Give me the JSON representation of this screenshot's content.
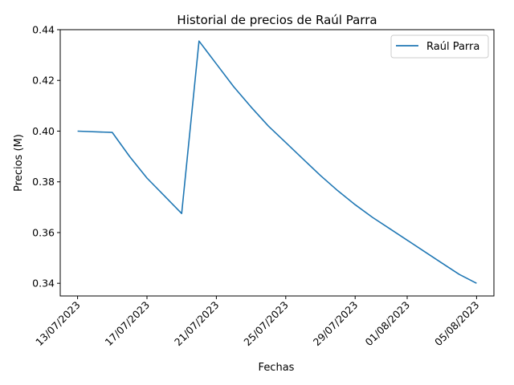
{
  "chart_data": {
    "type": "line",
    "title": "Historial de precios de Raúl Parra",
    "xlabel": "Fechas",
    "ylabel": "Precios (M)",
    "x_ticks": [
      "13/07/2023",
      "17/07/2023",
      "21/07/2023",
      "25/07/2023",
      "29/07/2023",
      "01/08/2023",
      "05/08/2023"
    ],
    "y_ticks": [
      "0.34",
      "0.36",
      "0.38",
      "0.40",
      "0.42",
      "0.44"
    ],
    "ylim": [
      0.335,
      0.44
    ],
    "xlim": [
      "2023-07-12",
      "2023-08-06"
    ],
    "grid": false,
    "legend_position": "top-right",
    "series": [
      {
        "name": "Raúl Parra",
        "color": "#1f77b4",
        "points": [
          {
            "x": "2023-07-13",
            "y": 0.4
          },
          {
            "x": "2023-07-15",
            "y": 0.3995
          },
          {
            "x": "2023-07-16",
            "y": 0.39
          },
          {
            "x": "2023-07-17",
            "y": 0.3815
          },
          {
            "x": "2023-07-18",
            "y": 0.3745
          },
          {
            "x": "2023-07-19",
            "y": 0.3675
          },
          {
            "x": "2023-07-20",
            "y": 0.4355
          },
          {
            "x": "2023-07-21",
            "y": 0.4265
          },
          {
            "x": "2023-07-22",
            "y": 0.4175
          },
          {
            "x": "2023-07-23",
            "y": 0.4095
          },
          {
            "x": "2023-07-24",
            "y": 0.402
          },
          {
            "x": "2023-07-25",
            "y": 0.3955
          },
          {
            "x": "2023-07-26",
            "y": 0.389
          },
          {
            "x": "2023-07-27",
            "y": 0.3825
          },
          {
            "x": "2023-07-28",
            "y": 0.3765
          },
          {
            "x": "2023-07-29",
            "y": 0.371
          },
          {
            "x": "2023-07-30",
            "y": 0.366
          },
          {
            "x": "2023-07-31",
            "y": 0.3615
          },
          {
            "x": "2023-08-01",
            "y": 0.357
          },
          {
            "x": "2023-08-02",
            "y": 0.3525
          },
          {
            "x": "2023-08-03",
            "y": 0.348
          },
          {
            "x": "2023-08-04",
            "y": 0.3435
          },
          {
            "x": "2023-08-05",
            "y": 0.34
          }
        ]
      }
    ]
  }
}
